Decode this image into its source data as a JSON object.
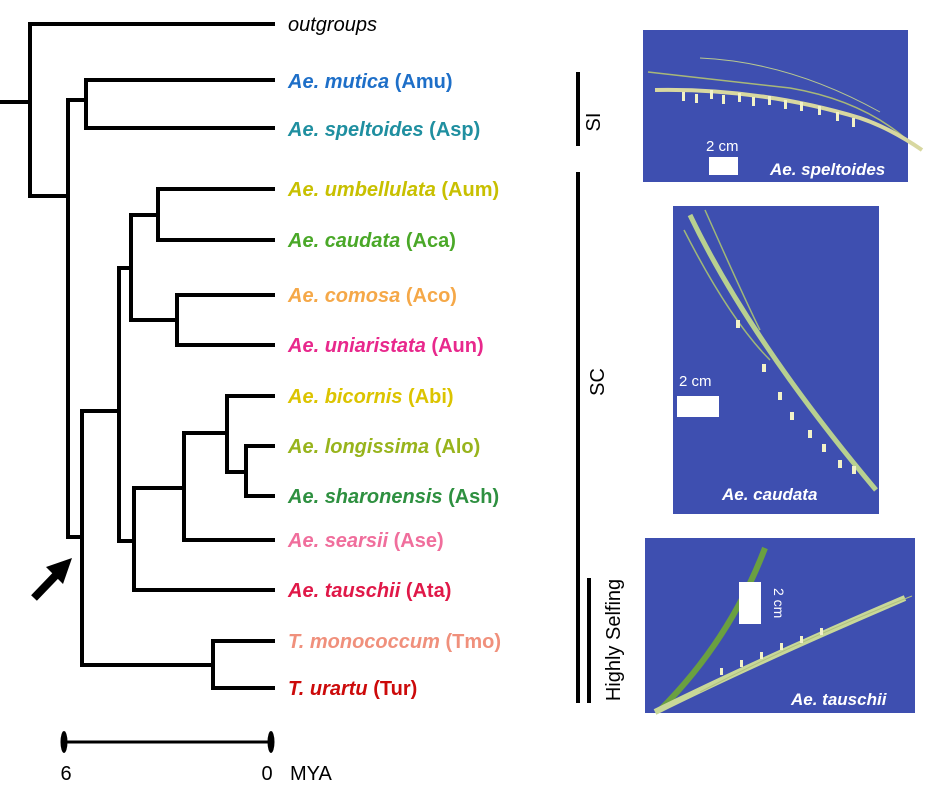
{
  "tree": {
    "taxa": [
      {
        "genus": "",
        "species": "outgroups",
        "code": "",
        "color": "#000000"
      },
      {
        "genus": "Ae.",
        "species": "mutica",
        "code": "(Amu)",
        "color": "#1e6fc8"
      },
      {
        "genus": "Ae.",
        "species": "speltoides",
        "code": "(Asp)",
        "color": "#1f8fa0"
      },
      {
        "genus": "Ae.",
        "species": "umbellulata",
        "code": "(Aum)",
        "color": "#c8c000"
      },
      {
        "genus": "Ae.",
        "species": "caudata",
        "code": "(Aca)",
        "color": "#4aa828"
      },
      {
        "genus": "Ae.",
        "species": "comosa",
        "code": "(Aco)",
        "color": "#f5a848"
      },
      {
        "genus": "Ae.",
        "species": "uniaristata",
        "code": "(Aun)",
        "color": "#e8288c"
      },
      {
        "genus": "Ae.",
        "species": "bicornis",
        "code": "(Abi)",
        "color": "#dcc400"
      },
      {
        "genus": "Ae.",
        "species": "longissima",
        "code": "(Alo)",
        "color": "#98b41c"
      },
      {
        "genus": "Ae.",
        "species": "sharonensis",
        "code": "(Ash)",
        "color": "#2e9040"
      },
      {
        "genus": "Ae.",
        "species": "searsii",
        "code": "(Ase)",
        "color": "#f06e9c"
      },
      {
        "genus": "Ae.",
        "species": "tauschii",
        "code": "(Ata)",
        "color": "#e01848"
      },
      {
        "genus": "T.",
        "species": "monococcum",
        "code": "(Tmo)",
        "color": "#f0907c"
      },
      {
        "genus": "T.",
        "species": "urartu",
        "code": "(Tur)",
        "color": "#cc0a0a"
      }
    ]
  },
  "groups": {
    "si": "SI",
    "sc": "SC",
    "highly_selfing": "Highly Selfing"
  },
  "scale": {
    "left_label": "6",
    "right_label": "0",
    "unit": "MYA"
  },
  "photos": {
    "speltoides": {
      "caption": "Ae. speltoides",
      "scale_label": "2 cm"
    },
    "caudata": {
      "caption": "Ae. caudata",
      "scale_label": "2 cm"
    },
    "tauschii": {
      "caption": "Ae. tauschii",
      "scale_label": "2 cm"
    }
  }
}
